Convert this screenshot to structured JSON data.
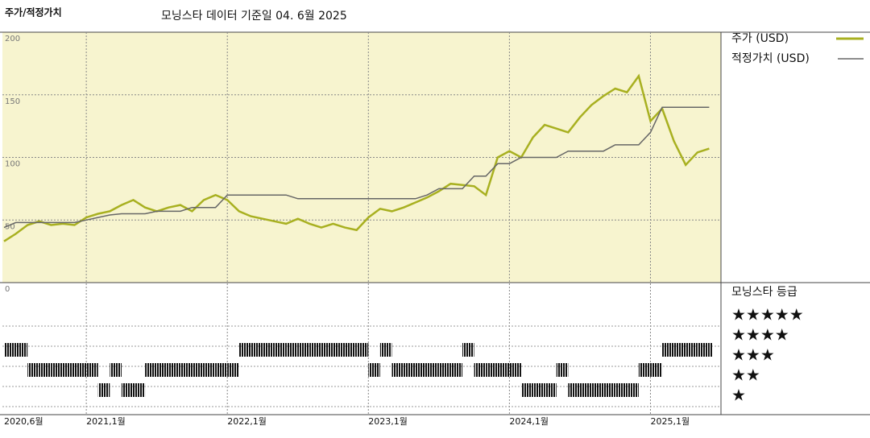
{
  "chart_data": [
    {
      "type": "line",
      "title": "주가/적정가치",
      "subtitle": "모닝스타 데이터 기준일 04. 6월 2025",
      "x": [
        "2020-06",
        "2020-07",
        "2020-08",
        "2020-09",
        "2020-10",
        "2020-11",
        "2020-12",
        "2021-01",
        "2021-02",
        "2021-03",
        "2021-04",
        "2021-05",
        "2021-06",
        "2021-07",
        "2021-08",
        "2021-09",
        "2021-10",
        "2021-11",
        "2021-12",
        "2022-01",
        "2022-02",
        "2022-03",
        "2022-04",
        "2022-05",
        "2022-06",
        "2022-07",
        "2022-08",
        "2022-09",
        "2022-10",
        "2022-11",
        "2022-12",
        "2023-01",
        "2023-02",
        "2023-03",
        "2023-04",
        "2023-05",
        "2023-06",
        "2023-07",
        "2023-08",
        "2023-09",
        "2023-10",
        "2023-11",
        "2023-12",
        "2024-01",
        "2024-02",
        "2024-03",
        "2024-04",
        "2024-05",
        "2024-06",
        "2024-07",
        "2024-08",
        "2024-09",
        "2024-10",
        "2024-11",
        "2024-12",
        "2025-01",
        "2025-02",
        "2025-03",
        "2025-04",
        "2025-05",
        "2025-06"
      ],
      "series": [
        {
          "name": "주가 (USD)",
          "color": "#a8b020",
          "values": [
            33,
            39,
            46,
            49,
            46,
            47,
            46,
            52,
            55,
            57,
            62,
            66,
            60,
            57,
            60,
            62,
            57,
            66,
            70,
            66,
            57,
            53,
            51,
            49,
            47,
            51,
            47,
            44,
            47,
            44,
            42,
            52,
            59,
            57,
            60,
            64,
            68,
            73,
            79,
            78,
            77,
            70,
            100,
            105,
            100,
            116,
            126,
            123,
            120,
            132,
            142,
            149,
            155,
            152,
            165,
            129,
            139,
            113,
            94,
            104,
            107
          ]
        },
        {
          "name": "적정가치 (USD)",
          "color": "#666666",
          "values": [
            44,
            48,
            48,
            48,
            48,
            48,
            48,
            50,
            52,
            54,
            55,
            55,
            55,
            57,
            57,
            57,
            60,
            60,
            60,
            70,
            70,
            70,
            70,
            70,
            70,
            67,
            67,
            67,
            67,
            67,
            67,
            67,
            67,
            67,
            67,
            67,
            70,
            75,
            75,
            75,
            85,
            85,
            95,
            95,
            100,
            100,
            100,
            100,
            105,
            105,
            105,
            105,
            110,
            110,
            110,
            120,
            140,
            140,
            140,
            140,
            140
          ]
        }
      ],
      "xlim": [
        "2020-06",
        "2025-07"
      ],
      "xticks": [
        {
          "value": "2020-06",
          "label": "2020,6월"
        },
        {
          "value": "2021-01",
          "label": "2021,1월"
        },
        {
          "value": "2022-01",
          "label": "2022,1월"
        },
        {
          "value": "2023-01",
          "label": "2023,1월"
        },
        {
          "value": "2024-01",
          "label": "2024,1월"
        },
        {
          "value": "2025-01",
          "label": "2025,1월"
        }
      ],
      "ylim": [
        0,
        200
      ],
      "yticks": [
        0,
        50,
        100,
        150,
        200
      ],
      "grid": true
    },
    {
      "type": "rating",
      "title": "모닝스타 등급",
      "x": [
        "2020-06",
        "2020-07",
        "2020-08",
        "2020-09",
        "2020-10",
        "2020-11",
        "2020-12",
        "2021-01",
        "2021-02",
        "2021-03",
        "2021-04",
        "2021-05",
        "2021-06",
        "2021-07",
        "2021-08",
        "2021-09",
        "2021-10",
        "2021-11",
        "2021-12",
        "2022-01",
        "2022-02",
        "2022-03",
        "2022-04",
        "2022-05",
        "2022-06",
        "2022-07",
        "2022-08",
        "2022-09",
        "2022-10",
        "2022-11",
        "2022-12",
        "2023-01",
        "2023-02",
        "2023-03",
        "2023-04",
        "2023-05",
        "2023-06",
        "2023-07",
        "2023-08",
        "2023-09",
        "2023-10",
        "2023-11",
        "2023-12",
        "2024-01",
        "2024-02",
        "2024-03",
        "2024-04",
        "2024-05",
        "2024-06",
        "2024-07",
        "2024-08",
        "2024-09",
        "2024-10",
        "2024-11",
        "2024-12",
        "2025-01",
        "2025-02",
        "2025-03",
        "2025-04",
        "2025-05",
        "2025-06"
      ],
      "values": [
        4,
        4,
        3,
        3,
        3,
        3,
        3,
        3,
        2,
        3,
        2,
        2,
        3,
        3,
        3,
        3,
        3,
        3,
        3,
        3,
        4,
        4,
        4,
        4,
        4,
        4,
        4,
        4,
        4,
        4,
        4,
        3,
        4,
        3,
        3,
        3,
        3,
        3,
        3,
        4,
        3,
        3,
        3,
        3,
        2,
        2,
        2,
        3,
        2,
        2,
        2,
        2,
        2,
        2,
        3,
        3,
        4,
        4,
        4,
        4,
        4
      ],
      "levels": [
        {
          "value": 5,
          "label": "★★★★★"
        },
        {
          "value": 4,
          "label": "★★★★"
        },
        {
          "value": 3,
          "label": "★★★"
        },
        {
          "value": 2,
          "label": "★★"
        },
        {
          "value": 1,
          "label": "★"
        }
      ],
      "color": "#111111"
    }
  ]
}
